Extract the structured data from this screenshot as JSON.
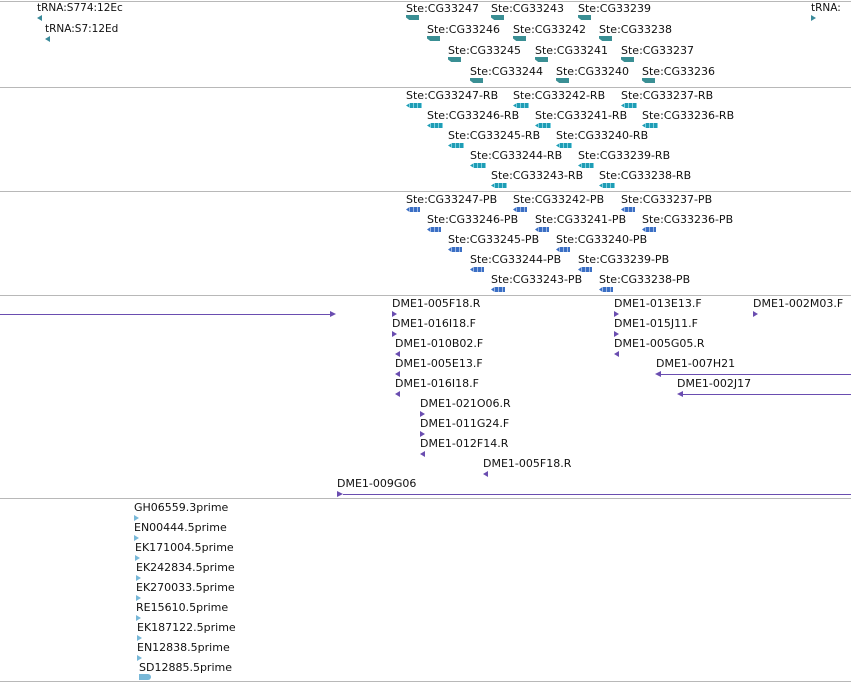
{
  "colors": {
    "trna": "#3a8a9a",
    "gene": "#3a8f94",
    "transcript": "#1f9db5",
    "protein": "#3b6fc4",
    "clone": "#6a4db0",
    "est": "#78b8d8",
    "divider": "#b8b8b8"
  },
  "tracks": {
    "trna": [
      {
        "label": "tRNA:S774:12Ec"
      },
      {
        "label": "tRNA:S7:12Ed"
      },
      {
        "label": "tRNA:"
      }
    ],
    "genes": [
      {
        "label": "Ste:CG33247"
      },
      {
        "label": "Ste:CG33243"
      },
      {
        "label": "Ste:CG33239"
      },
      {
        "label": "Ste:CG33246"
      },
      {
        "label": "Ste:CG33242"
      },
      {
        "label": "Ste:CG33238"
      },
      {
        "label": "Ste:CG33245"
      },
      {
        "label": "Ste:CG33241"
      },
      {
        "label": "Ste:CG33237"
      },
      {
        "label": "Ste:CG33244"
      },
      {
        "label": "Ste:CG33240"
      },
      {
        "label": "Ste:CG33236"
      }
    ],
    "transcripts": [
      {
        "label": "Ste:CG33247-RB"
      },
      {
        "label": "Ste:CG33242-RB"
      },
      {
        "label": "Ste:CG33237-RB"
      },
      {
        "label": "Ste:CG33246-RB"
      },
      {
        "label": "Ste:CG33241-RB"
      },
      {
        "label": "Ste:CG33236-RB"
      },
      {
        "label": "Ste:CG33245-RB"
      },
      {
        "label": "Ste:CG33240-RB"
      },
      {
        "label": "Ste:CG33244-RB"
      },
      {
        "label": "Ste:CG33239-RB"
      },
      {
        "label": "Ste:CG33243-RB"
      },
      {
        "label": "Ste:CG33238-RB"
      }
    ],
    "proteins": [
      {
        "label": "Ste:CG33247-PB"
      },
      {
        "label": "Ste:CG33242-PB"
      },
      {
        "label": "Ste:CG33237-PB"
      },
      {
        "label": "Ste:CG33246-PB"
      },
      {
        "label": "Ste:CG33241-PB"
      },
      {
        "label": "Ste:CG33236-PB"
      },
      {
        "label": "Ste:CG33245-PB"
      },
      {
        "label": "Ste:CG33240-PB"
      },
      {
        "label": "Ste:CG33244-PB"
      },
      {
        "label": "Ste:CG33239-PB"
      },
      {
        "label": "Ste:CG33243-PB"
      },
      {
        "label": "Ste:CG33238-PB"
      }
    ],
    "clones": [
      {
        "label": "DME1-005F18.R"
      },
      {
        "label": "DME1-013E13.F"
      },
      {
        "label": "DME1-002M03.F"
      },
      {
        "label": "DME1-016I18.F"
      },
      {
        "label": "DME1-015J11.F"
      },
      {
        "label": "DME1-010B02.F"
      },
      {
        "label": "DME1-005G05.R"
      },
      {
        "label": "DME1-005E13.F"
      },
      {
        "label": "DME1-007H21"
      },
      {
        "label": "DME1-016I18.F"
      },
      {
        "label": "DME1-002J17"
      },
      {
        "label": "DME1-021O06.R"
      },
      {
        "label": "DME1-011G24.F"
      },
      {
        "label": "DME1-012F14.R"
      },
      {
        "label": "DME1-005F18.R"
      },
      {
        "label": "DME1-009G06"
      }
    ],
    "ests": [
      {
        "label": "GH06559.3prime"
      },
      {
        "label": "EN00444.5prime"
      },
      {
        "label": "EK171004.5prime"
      },
      {
        "label": "EK242834.5prime"
      },
      {
        "label": "EK270033.5prime"
      },
      {
        "label": "RE15610.5prime"
      },
      {
        "label": "EK187122.5prime"
      },
      {
        "label": "EN12838.5prime"
      },
      {
        "label": "SD12885.5prime"
      }
    ]
  }
}
